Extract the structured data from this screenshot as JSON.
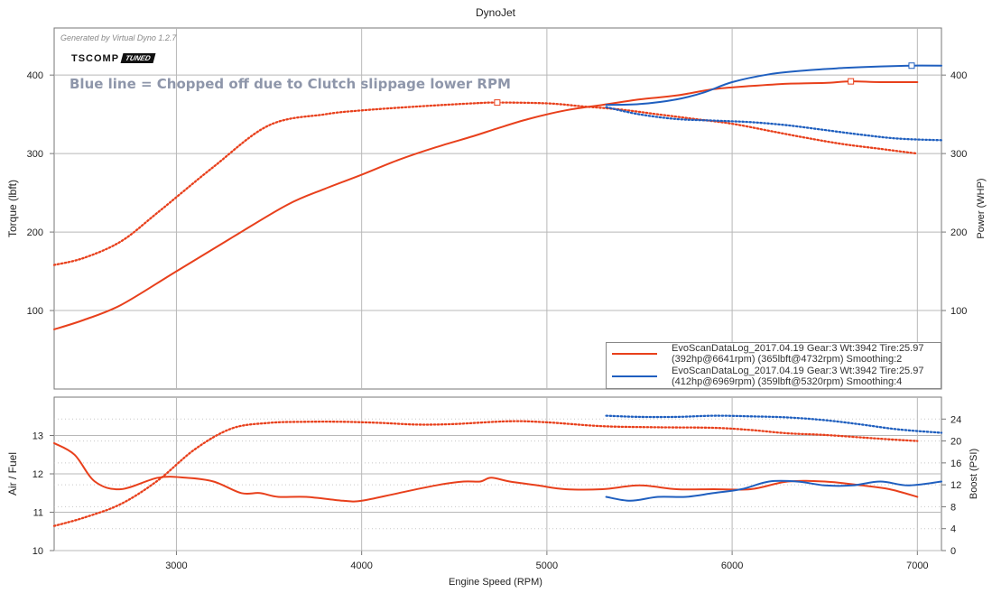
{
  "title": "DynoJet",
  "generated_by": "Generated by Virtual Dyno 1.2.7",
  "logo": {
    "part1": "TSCOMP",
    "part2": "TUNED"
  },
  "annotation": "Blue line = Chopped off due to Clutch slippage lower RPM",
  "legend": [
    {
      "line1": "EvoScanDataLog_2017.04.19 Gear:3 Wt:3942 Tire:25.97",
      "line2": "(392hp@6641rpm) (365lbft@4732rpm) Smoothing:2",
      "color": "#e8401c"
    },
    {
      "line1": "EvoScanDataLog_2017.04.19 Gear:3 Wt:3942 Tire:25.97",
      "line2": "(412hp@6969rpm) (359lbft@5320rpm) Smoothing:4",
      "color": "#1f5fbf"
    }
  ],
  "colors": {
    "red": "#e8401c",
    "blue": "#1f5fbf",
    "grid": "#b8b8b8"
  },
  "chart_data": [
    {
      "type": "line",
      "title": "DynoJet",
      "xlabel": "Engine Speed (RPM)",
      "ylabel": "Torque (lbft)",
      "y2label": "Power (WHP)",
      "xlim": [
        2340,
        7130
      ],
      "ylim": [
        0,
        460
      ],
      "x_ticks": [
        3000,
        4000,
        5000,
        6000,
        7000
      ],
      "y_ticks": [
        100,
        200,
        300,
        400
      ],
      "grid": true,
      "legend_position": "bottom-right",
      "series": [
        {
          "color": "#e8401c",
          "style": "solid",
          "x": [
            2340,
            2500,
            2700,
            3000,
            3300,
            3600,
            3800,
            4000,
            4200,
            4400,
            4600,
            4732,
            4900,
            5100,
            5300,
            5500,
            5700,
            5900,
            6100,
            6300,
            6500,
            6641,
            6800,
            7000
          ],
          "values": [
            76,
            88,
            107,
            150,
            193,
            235,
            255,
            273,
            292,
            308,
            322,
            332,
            344,
            355,
            362,
            369,
            374,
            382,
            386,
            389,
            390,
            392,
            391,
            391
          ]
        },
        {
          "color": "#e8401c",
          "style": "dotted",
          "x": [
            2340,
            2500,
            2700,
            2900,
            3200,
            3500,
            3800,
            4000,
            4300,
            4600,
            4732,
            5000,
            5200,
            5400,
            5600,
            5800,
            6000,
            6200,
            6400,
            6600,
            6800,
            7000
          ],
          "values": [
            158,
            167,
            188,
            225,
            283,
            336,
            350,
            355,
            360,
            364,
            365,
            364,
            360,
            356,
            350,
            344,
            338,
            329,
            320,
            312,
            306,
            300
          ]
        },
        {
          "color": "#1f5fbf",
          "style": "solid",
          "x": [
            5320,
            5500,
            5700,
            5850,
            6000,
            6200,
            6400,
            6600,
            6800,
            6969,
            7130
          ],
          "values": [
            362,
            363,
            369,
            378,
            391,
            401,
            406,
            409,
            411,
            412,
            412
          ]
        },
        {
          "color": "#1f5fbf",
          "style": "dotted",
          "x": [
            5320,
            5500,
            5700,
            5900,
            6100,
            6300,
            6500,
            6700,
            6900,
            7130
          ],
          "values": [
            359,
            350,
            344,
            342,
            340,
            336,
            330,
            324,
            319,
            317
          ]
        }
      ]
    },
    {
      "type": "line",
      "xlabel": "Engine Speed (RPM)",
      "ylabel": "Air / Fuel",
      "y2label": "Boost (PSI)",
      "xlim": [
        2340,
        7130
      ],
      "ylim": [
        10,
        14
      ],
      "y2lim": [
        0,
        28
      ],
      "x_ticks": [
        3000,
        4000,
        5000,
        6000,
        7000
      ],
      "y_ticks": [
        10,
        11,
        12,
        13
      ],
      "y2_ticks": [
        0,
        4,
        8,
        12,
        16,
        20,
        24
      ],
      "grid": true,
      "series": [
        {
          "color": "#e8401c",
          "style": "solid",
          "axis": "left",
          "x": [
            2340,
            2450,
            2560,
            2700,
            2900,
            3050,
            3200,
            3350,
            3450,
            3550,
            3700,
            3900,
            4000,
            4200,
            4400,
            4550,
            4640,
            4700,
            4800,
            4950,
            5100,
            5300,
            5500,
            5700,
            5900,
            6100,
            6300,
            6500,
            6700,
            6850,
            7000
          ],
          "values": [
            12.8,
            12.5,
            11.8,
            11.6,
            11.9,
            11.9,
            11.8,
            11.5,
            11.5,
            11.4,
            11.4,
            11.3,
            11.3,
            11.5,
            11.7,
            11.8,
            11.8,
            11.9,
            11.8,
            11.7,
            11.6,
            11.6,
            11.7,
            11.6,
            11.6,
            11.6,
            11.8,
            11.8,
            11.7,
            11.6,
            11.4
          ]
        },
        {
          "color": "#e8401c",
          "style": "dotted",
          "axis": "right",
          "x": [
            2340,
            2500,
            2700,
            2900,
            3100,
            3300,
            3500,
            3700,
            3900,
            4100,
            4300,
            4500,
            4800,
            5000,
            5300,
            5600,
            5900,
            6100,
            6300,
            6500,
            6800,
            7000
          ],
          "values": [
            4.5,
            6,
            8.5,
            12.8,
            18.5,
            22.3,
            23.3,
            23.5,
            23.5,
            23.3,
            23,
            23.1,
            23.6,
            23.4,
            22.7,
            22.5,
            22.4,
            22,
            21.4,
            21.1,
            20.4,
            20
          ]
        },
        {
          "color": "#1f5fbf",
          "style": "solid",
          "axis": "left",
          "x": [
            5320,
            5450,
            5600,
            5750,
            5900,
            6050,
            6200,
            6350,
            6500,
            6650,
            6800,
            6950,
            7130
          ],
          "values": [
            11.4,
            11.3,
            11.4,
            11.4,
            11.5,
            11.6,
            11.8,
            11.8,
            11.7,
            11.7,
            11.8,
            11.7,
            11.8
          ]
        },
        {
          "color": "#1f5fbf",
          "style": "dotted",
          "axis": "right",
          "x": [
            5320,
            5500,
            5700,
            5900,
            6100,
            6300,
            6500,
            6700,
            6900,
            7130
          ],
          "values": [
            24.6,
            24.4,
            24.4,
            24.6,
            24.5,
            24.3,
            23.8,
            23,
            22.1,
            21.5
          ]
        }
      ]
    }
  ]
}
